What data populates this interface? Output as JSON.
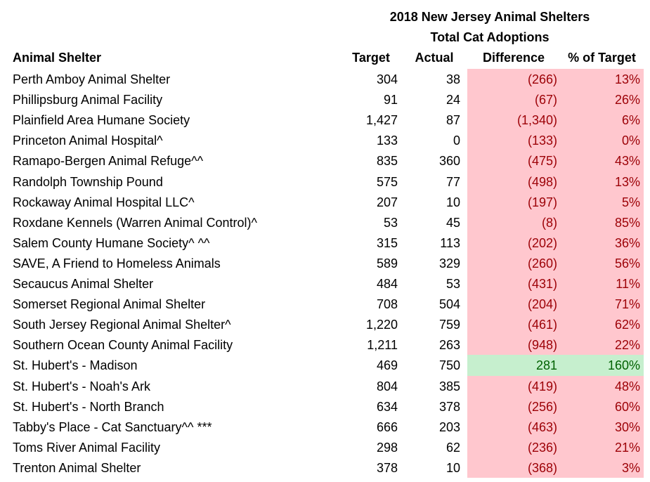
{
  "title": {
    "line1": "2018 New Jersey Animal Shelters",
    "line2": "Total Cat Adoptions"
  },
  "table": {
    "headers": [
      "Animal Shelter",
      "Target",
      "Actual",
      "Difference",
      "% of Target"
    ],
    "rows": [
      [
        "Perth Amboy Animal Shelter",
        "304",
        "38",
        "(266)",
        "13%"
      ],
      [
        "Phillipsburg Animal Facility",
        "91",
        "24",
        "(67)",
        "26%"
      ],
      [
        "Plainfield Area Humane Society",
        "1,427",
        "87",
        "(1,340)",
        "6%"
      ],
      [
        "Princeton Animal Hospital^",
        "133",
        "0",
        "(133)",
        "0%"
      ],
      [
        "Ramapo-Bergen Animal Refuge^^",
        "835",
        "360",
        "(475)",
        "43%"
      ],
      [
        "Randolph Township Pound",
        "575",
        "77",
        "(498)",
        "13%"
      ],
      [
        "Rockaway Animal Hospital LLC^",
        "207",
        "10",
        "(197)",
        "5%"
      ],
      [
        "Roxdane Kennels (Warren Animal Control)^",
        "53",
        "45",
        "(8)",
        "85%"
      ],
      [
        "Salem County Humane Society^ ^^",
        "315",
        "113",
        "(202)",
        "36%"
      ],
      [
        "SAVE, A Friend to Homeless Animals",
        "589",
        "329",
        "(260)",
        "56%"
      ],
      [
        "Secaucus Animal Shelter",
        "484",
        "53",
        "(431)",
        "11%"
      ],
      [
        "Somerset Regional Animal Shelter",
        "708",
        "504",
        "(204)",
        "71%"
      ],
      [
        "South Jersey Regional Animal Shelter^",
        "1,220",
        "759",
        "(461)",
        "62%"
      ],
      [
        "Southern Ocean County Animal Facility",
        "1,211",
        "263",
        "(948)",
        "22%"
      ],
      [
        "St. Hubert's - Madison",
        "469",
        "750",
        "281",
        "160%"
      ],
      [
        "St. Hubert's - Noah's Ark",
        "804",
        "385",
        "(419)",
        "48%"
      ],
      [
        "St. Hubert's - North Branch",
        "634",
        "378",
        "(256)",
        "60%"
      ],
      [
        "Tabby's Place - Cat Sanctuary^^ ***",
        "666",
        "203",
        "(463)",
        "30%"
      ],
      [
        "Toms River Animal Facility",
        "298",
        "62",
        "(236)",
        "21%"
      ],
      [
        "Trenton Animal Shelter",
        "378",
        "10",
        "(368)",
        "3%"
      ]
    ]
  },
  "styles": {
    "below_fill": "#ffc7ce",
    "below_text": "#9c0006",
    "above_fill": "#c6efce",
    "above_text": "#006100"
  }
}
